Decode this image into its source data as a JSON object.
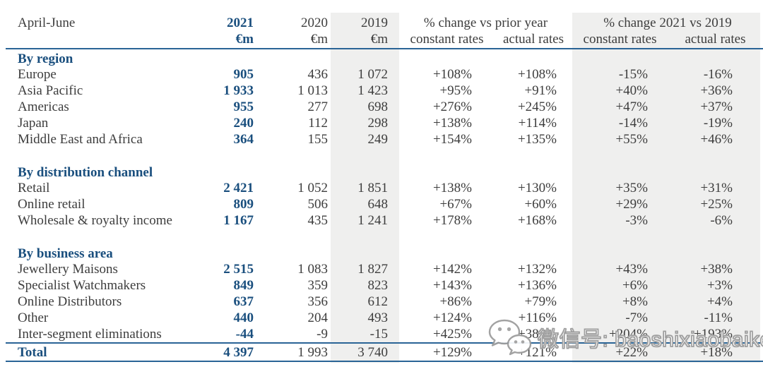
{
  "colors": {
    "accent_blue": "#1a4f7e",
    "rule_blue": "#2a6496",
    "body_text": "#3d3d3d",
    "shade_gray": "#efefee",
    "watermark_outline": "#9b9b9b"
  },
  "table": {
    "period_label": "April-June",
    "year_columns": [
      {
        "label": "2021",
        "unit": "€m"
      },
      {
        "label": "2020",
        "unit": "€m"
      },
      {
        "label": "2019",
        "unit": "€m"
      }
    ],
    "change_groups": [
      {
        "label": "% change vs prior year",
        "subcolumns": [
          "constant rates",
          "actual rates"
        ]
      },
      {
        "label": "% change 2021 vs 2019",
        "subcolumns": [
          "constant rates",
          "actual rates"
        ]
      }
    ],
    "sections": [
      {
        "title": "By region",
        "rows": [
          {
            "label": "Europe",
            "values": [
              "905",
              "436",
              "1 072",
              "+108%",
              "+108%",
              "-15%",
              "-16%"
            ]
          },
          {
            "label": "Asia Pacific",
            "values": [
              "1 933",
              "1 013",
              "1 423",
              "+95%",
              "+91%",
              "+40%",
              "+36%"
            ]
          },
          {
            "label": "Americas",
            "values": [
              "955",
              "277",
              "698",
              "+276%",
              "+245%",
              "+47%",
              "+37%"
            ]
          },
          {
            "label": "Japan",
            "values": [
              "240",
              "112",
              "298",
              "+138%",
              "+114%",
              "-14%",
              "-19%"
            ]
          },
          {
            "label": "Middle East and Africa",
            "values": [
              "364",
              "155",
              "249",
              "+154%",
              "+135%",
              "+55%",
              "+46%"
            ]
          }
        ]
      },
      {
        "title": "By distribution channel",
        "rows": [
          {
            "label": "Retail",
            "values": [
              "2 421",
              "1 052",
              "1 851",
              "+138%",
              "+130%",
              "+35%",
              "+31%"
            ]
          },
          {
            "label": "Online retail",
            "values": [
              "809",
              "506",
              "648",
              "+67%",
              "+60%",
              "+29%",
              "+25%"
            ]
          },
          {
            "label": "Wholesale & royalty income",
            "values": [
              "1 167",
              "435",
              "1 241",
              "+178%",
              "+168%",
              "-3%",
              "-6%"
            ]
          }
        ]
      },
      {
        "title": "By business area",
        "rows": [
          {
            "label": "Jewellery Maisons",
            "values": [
              "2 515",
              "1 083",
              "1 827",
              "+142%",
              "+132%",
              "+43%",
              "+38%"
            ]
          },
          {
            "label": "Specialist Watchmakers",
            "values": [
              "849",
              "359",
              "823",
              "+143%",
              "+136%",
              "+6%",
              "+3%"
            ]
          },
          {
            "label": "Online Distributors",
            "values": [
              "637",
              "356",
              "612",
              "+86%",
              "+79%",
              "+8%",
              "+4%"
            ]
          },
          {
            "label": "Other",
            "values": [
              "440",
              "204",
              "493",
              "+124%",
              "+116%",
              "-7%",
              "-11%"
            ]
          },
          {
            "label": "Inter-segment eliminations",
            "values": [
              "-44",
              "-9",
              "-15",
              "+425%",
              "+389%",
              "+204%",
              "+193%"
            ]
          }
        ]
      }
    ],
    "total_row": {
      "label": "Total",
      "values": [
        "4 397",
        "1 993",
        "3 740",
        "+129%",
        "+121%",
        "+22%",
        "+18%"
      ]
    }
  },
  "watermark": {
    "icon": "wechat-icon",
    "text": "微信号: baoshixiaobaike"
  }
}
